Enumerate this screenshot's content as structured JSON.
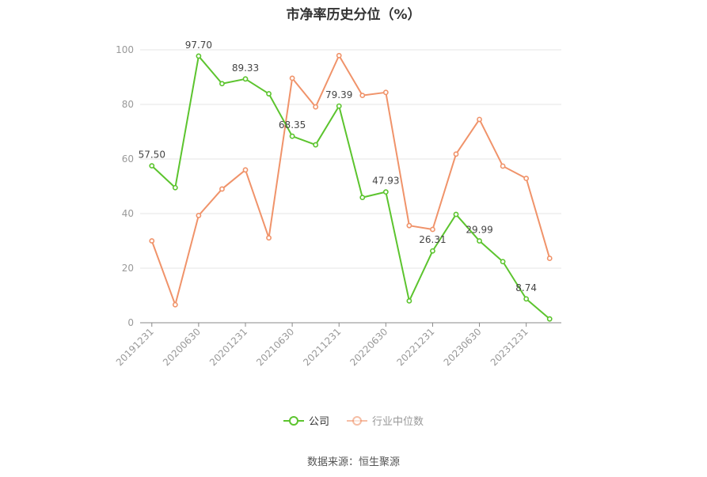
{
  "title": "市净率历史分位（%）",
  "source": "数据来源：恒生聚源",
  "colors": {
    "company": "#5cc42e",
    "industry": "#f0936a",
    "axis": "#999999",
    "grid": "#e6e6e6",
    "label": "#444444"
  },
  "chart_data": {
    "type": "line",
    "title": "市净率历史分位（%）",
    "ylim": [
      0,
      100
    ],
    "yticks": [
      0,
      20,
      40,
      60,
      80,
      100
    ],
    "grid": true,
    "legend_position": "bottom",
    "x_tick_labels": [
      "20191231",
      "20200630",
      "20201231",
      "20210630",
      "20211231",
      "20220630",
      "20221231",
      "20230630",
      "20231231"
    ],
    "categories": [
      "20191231",
      "20200331",
      "20200630",
      "20200930",
      "20201231",
      "20210331",
      "20210630",
      "20210930",
      "20211231",
      "20220331",
      "20220630",
      "20220930",
      "20221231",
      "20230331",
      "20230630",
      "20230930",
      "20231231",
      "20240331"
    ],
    "series": [
      {
        "name": "公司",
        "key": "company",
        "values": [
          57.5,
          49.5,
          97.7,
          87.6,
          89.33,
          83.9,
          68.35,
          65.2,
          79.39,
          45.9,
          47.93,
          8.0,
          26.31,
          39.7,
          29.99,
          22.4,
          8.74,
          1.4
        ],
        "labels": [
          "57.50",
          null,
          "97.70",
          null,
          "89.33",
          null,
          "68.35",
          null,
          "79.39",
          null,
          "47.93",
          null,
          "26.31",
          null,
          "29.99",
          null,
          "8.74",
          null
        ]
      },
      {
        "name": "行业中位数",
        "key": "industry",
        "values": [
          30.0,
          6.6,
          39.3,
          49.0,
          56.0,
          31.1,
          89.6,
          79.1,
          97.9,
          83.3,
          84.4,
          35.6,
          34.2,
          61.8,
          74.5,
          57.4,
          52.9,
          23.6
        ],
        "labels": []
      }
    ]
  }
}
